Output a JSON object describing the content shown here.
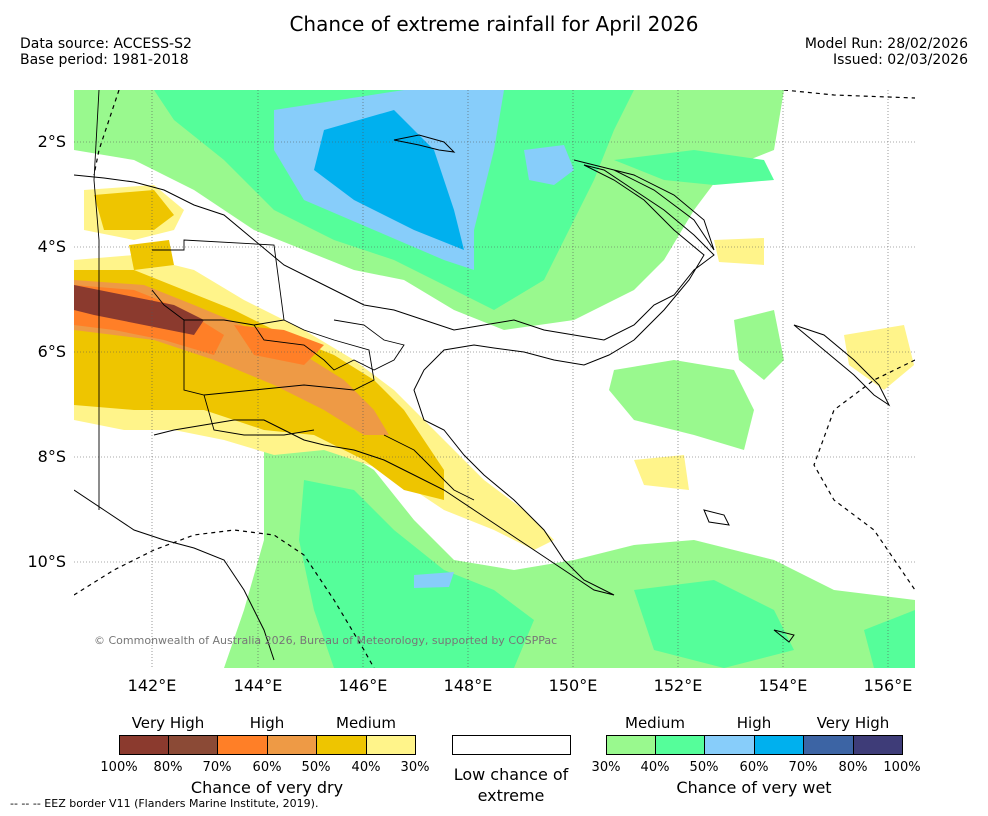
{
  "title": "Chance of extreme rainfall for April 2026",
  "meta_left": [
    "Data source: ACCESS-S2",
    "Base period: 1981-2018"
  ],
  "meta_right": [
    "Model Run: 28/02/2026",
    "Issued: 02/03/2026"
  ],
  "map": {
    "lat_labels": [
      "2°S",
      "4°S",
      "6°S",
      "8°S",
      "10°S"
    ],
    "lon_labels": [
      "142°E",
      "144°E",
      "146°E",
      "148°E",
      "150°E",
      "152°E",
      "154°E",
      "156°E"
    ],
    "grid": true,
    "copyright": "© Commonwealth of Australia 2026, Bureau of Meteorology, supported by COSPPac"
  },
  "dry_legend": {
    "headings": [
      "Very High",
      "High",
      "Medium"
    ],
    "colors": [
      "#8b3a2e",
      "#8b4a36",
      "#ff7f27",
      "#ee9a45",
      "#eec500",
      "#fff48a"
    ],
    "ticks": [
      "100%",
      "80%",
      "70%",
      "60%",
      "50%",
      "40%",
      "30%"
    ],
    "title": "Chance of very dry"
  },
  "low_legend": {
    "title": "Low chance of extreme"
  },
  "wet_legend": {
    "headings": [
      "Medium",
      "High",
      "Very High"
    ],
    "colors": [
      "#99f98e",
      "#55fe9a",
      "#87cdfa",
      "#00b0ee",
      "#3c64a4",
      "#3e3c78"
    ],
    "ticks": [
      "30%",
      "40%",
      "50%",
      "60%",
      "70%",
      "80%",
      "100%"
    ],
    "title": "Chance of very wet"
  },
  "eez_note": "--  --  -- EEZ border V11 (Flanders Marine Institute, 2019)."
}
